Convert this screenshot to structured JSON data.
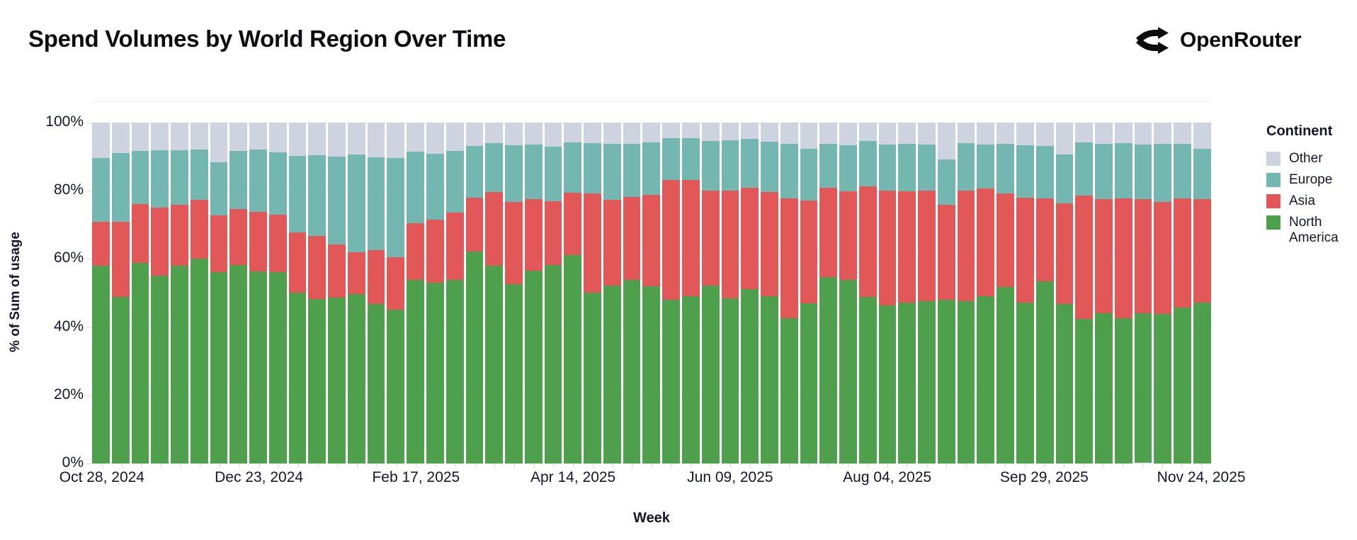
{
  "header": {
    "title": "Spend Volumes by World Region Over Time",
    "brand": "OpenRouter"
  },
  "legend": {
    "title": "Continent",
    "items": [
      {
        "label": "Other",
        "color": "#ced3e0"
      },
      {
        "label": "Europe",
        "color": "#74b6b0"
      },
      {
        "label": "Asia",
        "color": "#e25757"
      },
      {
        "label": "North America",
        "color": "#4fa04d"
      }
    ]
  },
  "chart_data": {
    "type": "bar",
    "stacked": true,
    "unit": "percent",
    "title": "Spend Volumes by World Region Over Time",
    "xlabel": "Week",
    "ylabel": "% of Sum of usage",
    "ylim": [
      0,
      100
    ],
    "grid": true,
    "legend_position": "right",
    "n_bars": 57,
    "y_ticks": [
      "0%",
      "20%",
      "40%",
      "60%",
      "80%",
      "100%"
    ],
    "x_ticks": [
      {
        "index": 0,
        "label": "Oct 28, 2024"
      },
      {
        "index": 8,
        "label": "Dec 23, 2024"
      },
      {
        "index": 16,
        "label": "Feb 17, 2025"
      },
      {
        "index": 24,
        "label": "Apr 14, 2025"
      },
      {
        "index": 32,
        "label": "Jun 09, 2025"
      },
      {
        "index": 40,
        "label": "Aug 04, 2025"
      },
      {
        "index": 48,
        "label": "Sep 29, 2025"
      },
      {
        "index": 56,
        "label": "Nov 24, 2025"
      }
    ],
    "series": [
      {
        "name": "North America",
        "color": "#4fa04d",
        "values": [
          58.0,
          48.9,
          58.8,
          55.1,
          58.0,
          60.1,
          56.1,
          58.2,
          56.3,
          56.1,
          50.1,
          48.2,
          48.6,
          49.7,
          46.8,
          45.2,
          53.8,
          53.0,
          53.8,
          62.2,
          58.0,
          52.6,
          56.5,
          58.2,
          61.1,
          50.1,
          52.2,
          53.8,
          52.0,
          48.0,
          49.1,
          52.2,
          48.4,
          51.1,
          49.1,
          42.6,
          47.0,
          54.7,
          53.8,
          48.9,
          46.4,
          47.2,
          47.6,
          48.0,
          47.6,
          49.1,
          51.8,
          47.2,
          53.4,
          46.8,
          42.4,
          44.1,
          42.6,
          43.7,
          43.9,
          45.7,
          47.2
        ]
      },
      {
        "name": "Asia",
        "color": "#e25757",
        "values": [
          12.9,
          22.0,
          17.3,
          20.0,
          17.9,
          17.2,
          16.7,
          16.4,
          17.6,
          16.9,
          17.7,
          18.5,
          15.6,
          12.3,
          15.8,
          15.3,
          16.7,
          18.5,
          19.8,
          15.8,
          21.6,
          24.1,
          21.1,
          18.7,
          18.3,
          29.1,
          25.1,
          24.4,
          26.8,
          35.2,
          34.1,
          27.8,
          31.6,
          29.8,
          30.5,
          35.2,
          30.1,
          26.2,
          26.0,
          32.4,
          33.6,
          32.6,
          32.4,
          27.9,
          32.4,
          31.6,
          27.4,
          30.8,
          24.4,
          29.5,
          36.2,
          33.5,
          35.2,
          33.6,
          32.8,
          32.1,
          30.4
        ]
      },
      {
        "name": "Europe",
        "color": "#74b6b0",
        "values": [
          18.7,
          20.2,
          15.6,
          16.8,
          16.0,
          14.7,
          15.6,
          17.0,
          18.2,
          18.2,
          22.4,
          23.7,
          25.8,
          28.6,
          27.2,
          29.1,
          21.0,
          19.4,
          18.1,
          15.2,
          14.4,
          16.6,
          15.9,
          16.1,
          14.8,
          14.8,
          16.5,
          15.6,
          15.4,
          12.2,
          12.2,
          14.6,
          14.8,
          14.3,
          14.8,
          16.0,
          15.2,
          12.9,
          13.5,
          13.3,
          13.5,
          14.0,
          13.5,
          13.3,
          14.0,
          12.8,
          14.6,
          15.3,
          15.4,
          14.3,
          15.6,
          16.2,
          16.2,
          15.9,
          17.1,
          16.0,
          14.7
        ]
      },
      {
        "name": "Other",
        "color": "#ced3e0",
        "values": [
          10.4,
          8.9,
          8.3,
          8.1,
          8.1,
          8.0,
          11.6,
          8.4,
          7.9,
          8.8,
          9.8,
          9.6,
          10.0,
          9.4,
          10.2,
          10.4,
          8.5,
          9.1,
          8.3,
          6.8,
          6.0,
          6.7,
          6.5,
          7.0,
          5.8,
          6.0,
          6.2,
          6.2,
          5.8,
          4.6,
          4.6,
          5.4,
          5.2,
          4.8,
          5.6,
          6.2,
          7.7,
          6.2,
          6.7,
          5.4,
          6.5,
          6.2,
          6.5,
          10.8,
          6.0,
          6.5,
          6.2,
          6.7,
          6.8,
          9.4,
          5.8,
          6.2,
          6.0,
          6.5,
          6.2,
          6.2,
          7.7
        ]
      }
    ]
  }
}
